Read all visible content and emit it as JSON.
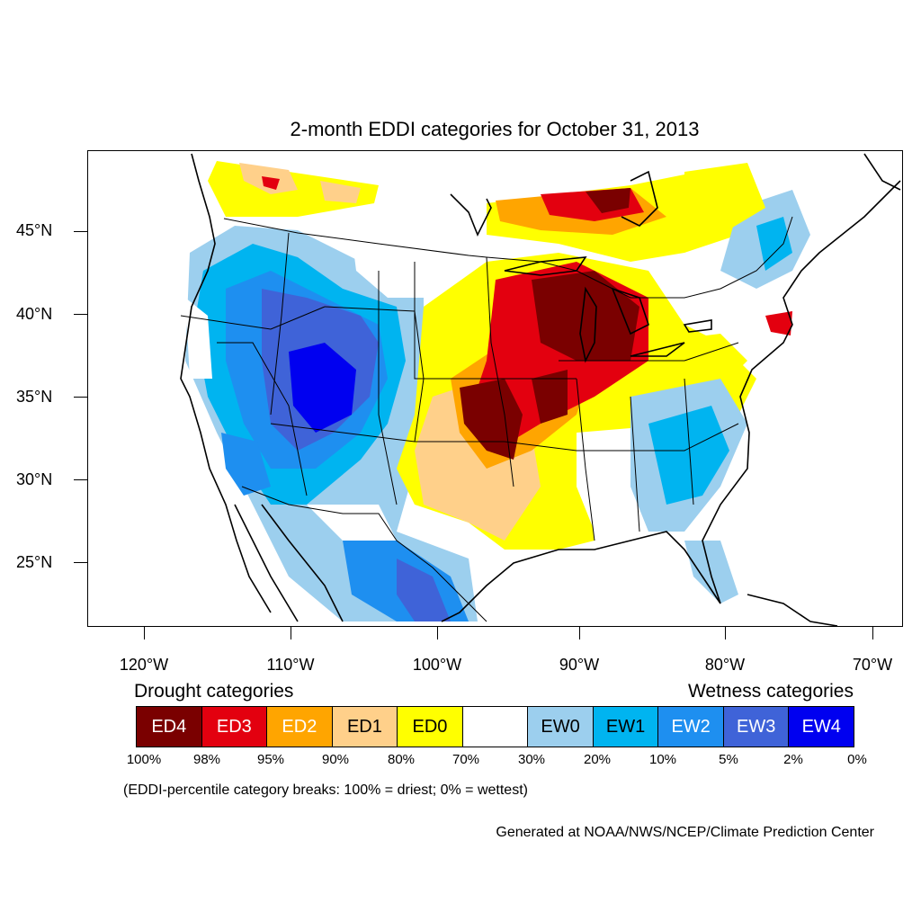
{
  "title": "2-month EDDI categories for October 31, 2013",
  "lat_labels": [
    "45°N",
    "40°N",
    "35°N",
    "30°N",
    "25°N"
  ],
  "lon_labels": [
    "120°W",
    "110°W",
    "100°W",
    "90°W",
    "80°W",
    "70°W"
  ],
  "legend": {
    "drought_heading": "Drought categories",
    "wetness_heading": "Wetness categories",
    "categories": [
      {
        "label": "ED4",
        "color": "#7a0000",
        "text_color": "#ffffff"
      },
      {
        "label": "ED3",
        "color": "#e3000f",
        "text_color": "#ffffff"
      },
      {
        "label": "ED2",
        "color": "#ffa500",
        "text_color": "#ffffff"
      },
      {
        "label": "ED1",
        "color": "#ffd08a",
        "text_color": "#000000"
      },
      {
        "label": "ED0",
        "color": "#ffff00",
        "text_color": "#000000"
      },
      {
        "label": "",
        "color": "#ffffff",
        "text_color": "#000000"
      },
      {
        "label": "EW0",
        "color": "#9ccfee",
        "text_color": "#000000"
      },
      {
        "label": "EW1",
        "color": "#00b4f0",
        "text_color": "#000000"
      },
      {
        "label": "EW2",
        "color": "#1e8ff0",
        "text_color": "#ffffff"
      },
      {
        "label": "EW3",
        "color": "#3f63d8",
        "text_color": "#ffffff"
      },
      {
        "label": "EW4",
        "color": "#0000f0",
        "text_color": "#ffffff"
      }
    ],
    "percentiles": [
      "100%",
      "98%",
      "95%",
      "90%",
      "80%",
      "70%",
      "30%",
      "20%",
      "10%",
      "5%",
      "2%",
      "0%"
    ]
  },
  "footnote": "(EDDI-percentile category breaks: 100% = driest; 0% = wettest)",
  "credit": "Generated at NOAA/NWS/NCEP/Climate Prediction Center"
}
